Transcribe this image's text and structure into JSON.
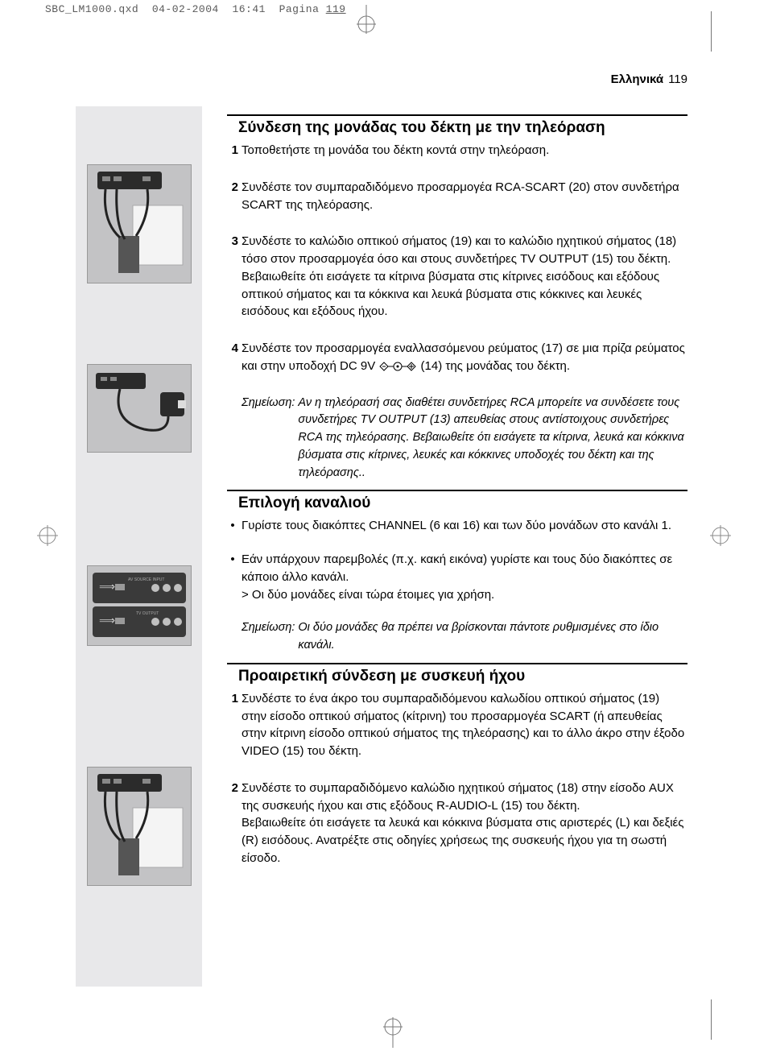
{
  "print_header": {
    "filename": "SBC_LM1000.qxd",
    "date": "04-02-2004",
    "time": "16:41",
    "page_word": "Pagina",
    "page_num": "119"
  },
  "page_label": {
    "language": "Ελληνικά",
    "number": "119"
  },
  "colors": {
    "text": "#000000",
    "print_meta": "#5a5a5a",
    "sidebar_bg": "#e8e8ea",
    "figure_bg": "#c3c3c5",
    "page_bg": "#ffffff",
    "rule": "#000000"
  },
  "typography": {
    "body_pt": 15,
    "heading_pt": 19,
    "note_pt": 14
  },
  "sections": [
    {
      "heading": "Σύνδεση της μονάδας του δέκτη με την τηλεόραση",
      "items": [
        {
          "type": "step",
          "num": "1",
          "text": "Τοποθετήστε τη μονάδα του δέκτη κοντά στην τηλεόραση."
        },
        {
          "type": "step",
          "num": "2",
          "text": "Συνδέστε τον συμπαραδιδόμενο προσαρμογέα RCA-SCART (20) στον συνδετήρα SCART της τηλεόρασης."
        },
        {
          "type": "step",
          "num": "3",
          "text": "Συνδέστε το καλώδιο οπτικού σήματος (19) και το καλώδιο ηχητικού σήματος (18) τόσο στον προσαρμογέα όσο και στους συνδετήρες TV OUTPUT (15) του δέκτη.\nΒεβαιωθείτε ότι εισάγετε τα κίτρινα βύσματα στις κίτρινες εισόδους και εξόδους οπτικού σήματος και τα κόκκινα και λευκά βύσματα στις κόκκινες και λευκές εισόδους και εξόδους ήχου."
        },
        {
          "type": "step",
          "num": "4",
          "text_pre": "Συνδέστε τον προσαρμογέα εναλλασσόμενου ρεύματος (17) σε μια πρίζα ρεύματος και στην υποδοχή DC 9V ",
          "text_post": " (14) της μονάδας του δέκτη."
        },
        {
          "type": "note",
          "label": "Σημείωση:",
          "text": "Αν η τηλεόρασή σας διαθέτει συνδετήρες RCA μπορείτε να συνδέσετε τους συνδετήρες TV OUTPUT (13) απευθείας στους αντίστοιχους συνδετήρες RCA της τηλεόρασης. Βεβαιωθείτε ότι εισάγετε τα κίτρινα, λευκά και κόκκινα βύσματα στις κίτρινες, λευκές και κόκκινες υποδοχές του δέκτη και της τηλεόρασης.."
        }
      ]
    },
    {
      "heading": "Επιλογή καναλιού",
      "items": [
        {
          "type": "bullet",
          "text": "Γυρίστε τους διακόπτες CHANNEL (6 και 16) και των δύο μονάδων στο κανάλι 1."
        },
        {
          "type": "bullet",
          "text": "Εάν υπάρχουν παρεμβολές (π.χ. κακή εικόνα) γυρίστε και τους δύο διακόπτες σε κάποιο άλλο κανάλι.\n> Οι δύο μονάδες είναι τώρα έτοιμες για χρήση."
        },
        {
          "type": "note",
          "label": "Σημείωση:",
          "text": "Οι δύο μονάδες θα πρέπει να βρίσκονται πάντοτε ρυθμισμένες στο ίδιο κανάλι."
        }
      ]
    },
    {
      "heading": "Προαιρετική σύνδεση με συσκευή ήχου",
      "items": [
        {
          "type": "step",
          "num": "1",
          "text": "Συνδέστε το ένα άκρο του συμπαραδιδόμενου καλωδίου οπτικού σήματος (19) στην είσοδο οπτικού σήματος (κίτρινη) του προσαρμογέα SCART (ή απευθείας στην κίτρινη είσοδο οπτικού σήματος της τηλεόρασης) και το άλλο άκρο στην έξοδο VIDEO (15) του δέκτη."
        },
        {
          "type": "step",
          "num": "2",
          "text": "Συνδέστε το συμπαραδιδόμενο καλώδιο ηχητικού σήματος (18) στην είσοδο AUX της συσκευής ήχου και στις εξόδους R-AUDIO-L (15) του δέκτη.\nΒεβαιωθείτε ότι εισάγετε τα λευκά και κόκκινα βύσματα στις αριστερές (L) και δεξιές (R) εισόδους. Ανατρέξτε στις οδηγίες χρήσεως της συσκευής ήχου για τη σωστή είσοδο."
        }
      ]
    }
  ],
  "figures": [
    {
      "id": "fig1",
      "alt": "Receiver connected to TV via SCART and RCA cables"
    },
    {
      "id": "fig2",
      "alt": "AC power adapter connected to receiver and wall socket"
    },
    {
      "id": "fig3",
      "alt": "Two receiver units rear panels showing CHANNEL switches"
    },
    {
      "id": "fig4",
      "alt": "Receiver connected to TV and audio device"
    }
  ]
}
